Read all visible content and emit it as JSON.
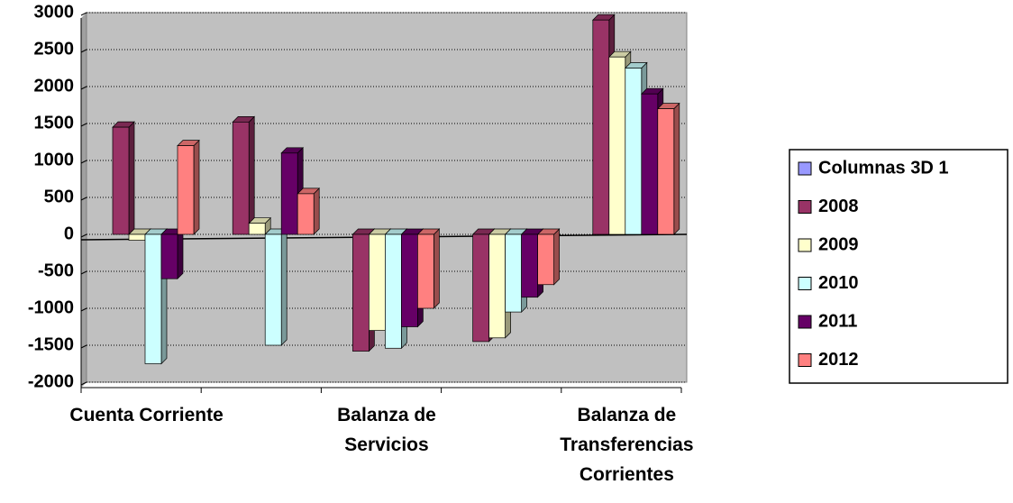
{
  "chart_data": {
    "type": "bar3d",
    "categories": [
      "Cuenta Corriente",
      null,
      "Balanza de Servicios",
      null,
      "Balanza de Transferencias Corrientes"
    ],
    "series": [
      {
        "name": "Columnas 3D 1",
        "color": "#9999ff",
        "values": [
          null,
          null,
          null,
          null,
          null
        ]
      },
      {
        "name": "2008",
        "color": "#993366",
        "values": [
          1450,
          1520,
          -1580,
          -1450,
          2900
        ]
      },
      {
        "name": "2009",
        "color": "#ffffcc",
        "values": [
          -80,
          150,
          -1300,
          -1400,
          2400
        ]
      },
      {
        "name": "2010",
        "color": "#ccffff",
        "values": [
          -1750,
          -1500,
          -1540,
          -1050,
          2250
        ]
      },
      {
        "name": "2011",
        "color": "#660066",
        "values": [
          -600,
          1100,
          -1250,
          -850,
          1900
        ]
      },
      {
        "name": "2012",
        "color": "#ff8080",
        "values": [
          1200,
          550,
          -1000,
          -680,
          1700
        ]
      }
    ],
    "ylim": [
      -2000,
      3000
    ],
    "yticks": [
      -2000,
      -1500,
      -1000,
      -500,
      0,
      500,
      1000,
      1500,
      2000,
      2500,
      3000
    ],
    "grid": true,
    "legend": "right"
  }
}
